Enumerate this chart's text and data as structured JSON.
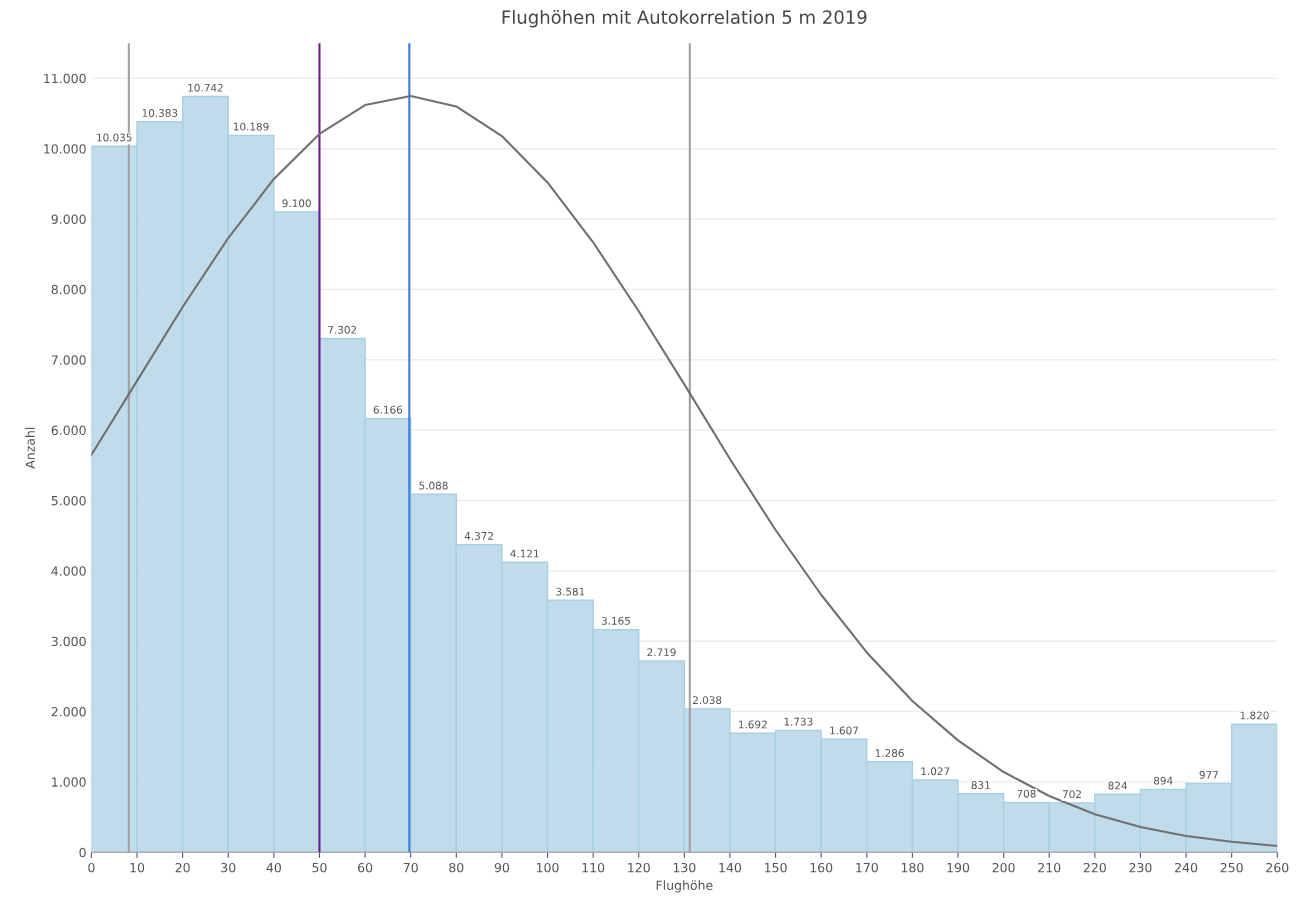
{
  "chart_data": {
    "type": "histogram",
    "title": "Flughöhen mit Autokorrelation 5 m 2019",
    "xlabel": "Flughöhe",
    "ylabel": "Anzahl",
    "bins": [
      0,
      10,
      20,
      30,
      40,
      50,
      60,
      70,
      80,
      90,
      100,
      110,
      120,
      130,
      140,
      150,
      160,
      170,
      180,
      190,
      200,
      210,
      220,
      230,
      240,
      250,
      260
    ],
    "values": [
      10035,
      10383,
      10742,
      10189,
      9100,
      7302,
      6166,
      5088,
      4372,
      4121,
      3581,
      3165,
      2719,
      2038,
      1692,
      1733,
      1607,
      1286,
      1027,
      831,
      708,
      702,
      824,
      894,
      977,
      1820
    ],
    "value_labels": [
      "10.035",
      "10.383",
      "10.742",
      "10.189",
      "9.100",
      "7.302",
      "6.166",
      "5.088",
      "4.372",
      "4.121",
      "3.581",
      "3.165",
      "2.719",
      "2.038",
      "1.692",
      "1.733",
      "1.607",
      "1.286",
      "1.027",
      "831",
      "708",
      "702",
      "824",
      "894",
      "977",
      "1.820"
    ],
    "color": "#c0dcea",
    "series": [
      {
        "type": "line",
        "color": "#707070",
        "x": [
          0,
          10,
          20,
          30,
          40,
          50,
          60,
          70,
          80,
          90,
          100,
          110,
          120,
          130,
          140,
          150,
          160,
          170,
          180,
          190,
          200,
          210,
          220,
          230,
          240,
          250,
          260
        ],
        "values": [
          5650,
          6700,
          7750,
          8730,
          9570,
          10210,
          10620,
          10750,
          10600,
          10180,
          9520,
          8670,
          7690,
          6650,
          5590,
          4580,
          3660,
          2840,
          2150,
          1590,
          1140,
          800,
          540,
          360,
          230,
          150,
          90
        ]
      }
    ],
    "ref_lines": [
      {
        "axis": "x",
        "value": 8.2,
        "color": "#a0a0a0"
      },
      {
        "axis": "x",
        "value": 50,
        "color": "#6a1b8a"
      },
      {
        "axis": "x",
        "value": 69.7,
        "color": "#3a7be0"
      },
      {
        "axis": "x",
        "value": 131.2,
        "color": "#a0a0a0"
      }
    ],
    "xlim": [
      0,
      260
    ],
    "xticks": [
      0,
      10,
      20,
      30,
      40,
      50,
      60,
      70,
      80,
      90,
      100,
      110,
      120,
      130,
      140,
      150,
      160,
      170,
      180,
      190,
      200,
      210,
      220,
      230,
      240,
      250,
      260
    ],
    "ylim": [
      0,
      11500
    ],
    "yticks": [
      0,
      {
        "value": 1000,
        "label": "1.000"
      },
      {
        "value": 2000,
        "label": "2.000"
      },
      {
        "value": 3000,
        "label": "3.000"
      },
      {
        "value": 4000,
        "label": "4.000"
      },
      {
        "value": 5000,
        "label": "5.000"
      },
      {
        "value": 6000,
        "label": "6.000"
      },
      {
        "value": 7000,
        "label": "7.000"
      },
      {
        "value": 8000,
        "label": "8.000"
      },
      {
        "value": 9000,
        "label": "9.000"
      },
      {
        "value": 10000,
        "label": "10.000"
      },
      {
        "value": 11000,
        "label": "11.000"
      }
    ],
    "grid": "y",
    "legend": false
  }
}
